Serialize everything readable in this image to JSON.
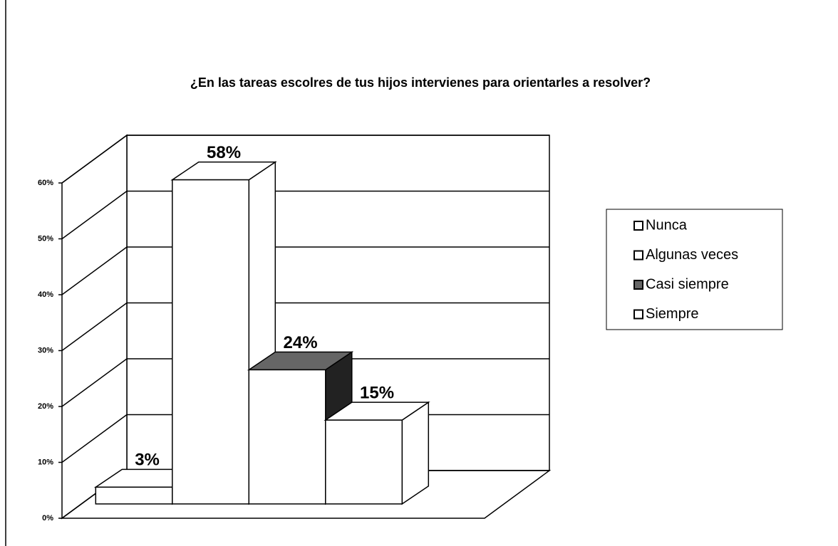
{
  "chart_data": {
    "type": "bar3d",
    "title": "¿En las tareas escolres de tus hijos intervienes para orientarles a resolver?",
    "series": [
      {
        "name": "Nunca",
        "color": "#ffffff",
        "values": [
          3
        ],
        "value_labels": [
          "3%"
        ]
      },
      {
        "name": "Algunas veces",
        "color": "#ffffff",
        "values": [
          58
        ],
        "value_labels": [
          "58%"
        ]
      },
      {
        "name": "Casi siempre",
        "color": "#222222",
        "values": [
          24
        ],
        "value_labels": [
          "24%"
        ]
      },
      {
        "name": "Siempre",
        "color": "#ffffff",
        "values": [
          15
        ],
        "value_labels": [
          "15%"
        ]
      }
    ],
    "ylim": [
      0,
      60
    ],
    "yticks": [
      {
        "value": 0,
        "label": "0%"
      },
      {
        "value": 10,
        "label": "10%"
      },
      {
        "value": 20,
        "label": "20%"
      },
      {
        "value": 30,
        "label": "30%"
      },
      {
        "value": 40,
        "label": "40%"
      },
      {
        "value": 50,
        "label": "50%"
      },
      {
        "value": 60,
        "label": "60%"
      }
    ],
    "grid": true,
    "legend": "right"
  }
}
